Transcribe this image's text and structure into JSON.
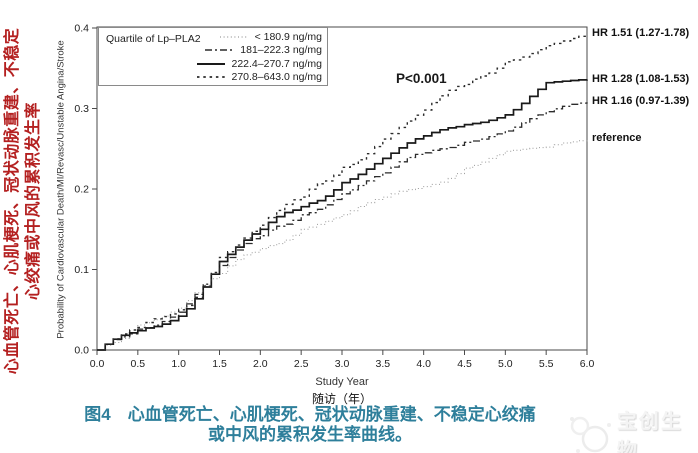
{
  "left_label": {
    "line1": "心血管死亡、心肌梗死、冠状动脉重建、不稳定",
    "line2": "心绞痛或中风的累积发生率",
    "color": "#b42020"
  },
  "chart_data": {
    "type": "line",
    "title": "",
    "xlabel": "Study Year",
    "xlabel_cn": "随访（年）",
    "ylabel": "Probability of Cardiovascular Death/MI/Revasc/Unstable Angina/Stroke",
    "xlim": [
      0,
      6
    ],
    "ylim": [
      0,
      0.4
    ],
    "xticks": [
      0,
      0.5,
      1,
      1.5,
      2,
      2.5,
      3,
      3.5,
      4,
      4.5,
      5,
      5.5,
      6
    ],
    "yticks": [
      0,
      0.1,
      0.2,
      0.3,
      0.4
    ],
    "grid": false,
    "legend_title": "Quartile of Lp–PLA2",
    "legend_position": "upper-left",
    "annotation": "P<0.001",
    "x": [
      0,
      0.5,
      1,
      1.5,
      2,
      2.5,
      3,
      3.5,
      4,
      4.5,
      5,
      5.5,
      6
    ],
    "series": [
      {
        "name": "< 180.9 ng/mg",
        "style": "dotted",
        "color": "#9a9a9a",
        "hr_label": "reference",
        "values": [
          0,
          0.031,
          0.052,
          0.095,
          0.126,
          0.15,
          0.168,
          0.19,
          0.203,
          0.226,
          0.247,
          0.252,
          0.262
        ]
      },
      {
        "name": "181–222.3 ng/mg",
        "style": "dashdot",
        "color": "#2b2b2b",
        "hr_label": "HR 1.16 (0.97-1.39)",
        "values": [
          0,
          0.026,
          0.047,
          0.105,
          0.142,
          0.168,
          0.194,
          0.22,
          0.245,
          0.258,
          0.272,
          0.296,
          0.308
        ]
      },
      {
        "name": "222.4–270.7 ng/mg",
        "style": "solid",
        "color": "#1a1a1a",
        "hr_label": "HR 1.28 (1.08-1.53)",
        "values": [
          0,
          0.024,
          0.042,
          0.11,
          0.15,
          0.178,
          0.208,
          0.238,
          0.266,
          0.28,
          0.292,
          0.332,
          0.336
        ]
      },
      {
        "name": "270.8–643.0 ng/mg",
        "style": "dashed",
        "color": "#2b2b2b",
        "hr_label": "HR 1.51 (1.27-1.78)",
        "values": [
          0,
          0.028,
          0.05,
          0.115,
          0.155,
          0.19,
          0.227,
          0.262,
          0.298,
          0.33,
          0.358,
          0.378,
          0.392
        ]
      }
    ]
  },
  "caption": {
    "line1": "图4　心血管死亡、心肌梗死、冠状动脉重建、不稳定心绞痛",
    "line2": "或中风的累积发生率曲线。",
    "color": "#2e7f9b"
  },
  "watermark": {
    "text": "宝创生物"
  }
}
